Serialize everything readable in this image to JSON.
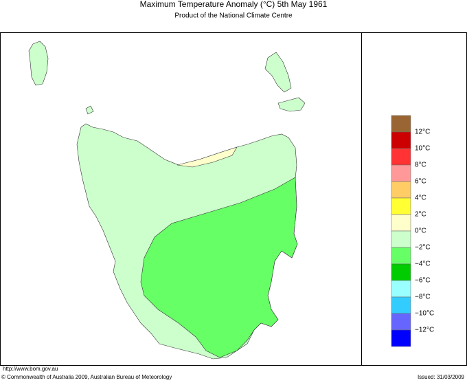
{
  "header": {
    "title": "Maximum Temperature Anomaly (°C)  5th May 1961",
    "subtitle": "Product of the National Climate Centre"
  },
  "legend": {
    "colors": [
      "#996633",
      "#cc0000",
      "#ff3333",
      "#ff9999",
      "#ffcc66",
      "#ffff33",
      "#ffffcc",
      "#ccffcc",
      "#66ff66",
      "#00cc00",
      "#99ffff",
      "#33ccff",
      "#6666ff",
      "#0000ff"
    ],
    "labels": [
      "12°C",
      "10°C",
      "8°C",
      "6°C",
      "4°C",
      "2°C",
      "0°C",
      "−2°C",
      "−4°C",
      "−6°C",
      "−8°C",
      "−10°C",
      "−12°C"
    ]
  },
  "footer": {
    "url": "http://www.bom.gov.au",
    "copyright": "© Commonwealth of Australia 2009, Australian Bureau of Meteorology",
    "issued": "Issued: 31/03/2009"
  }
}
